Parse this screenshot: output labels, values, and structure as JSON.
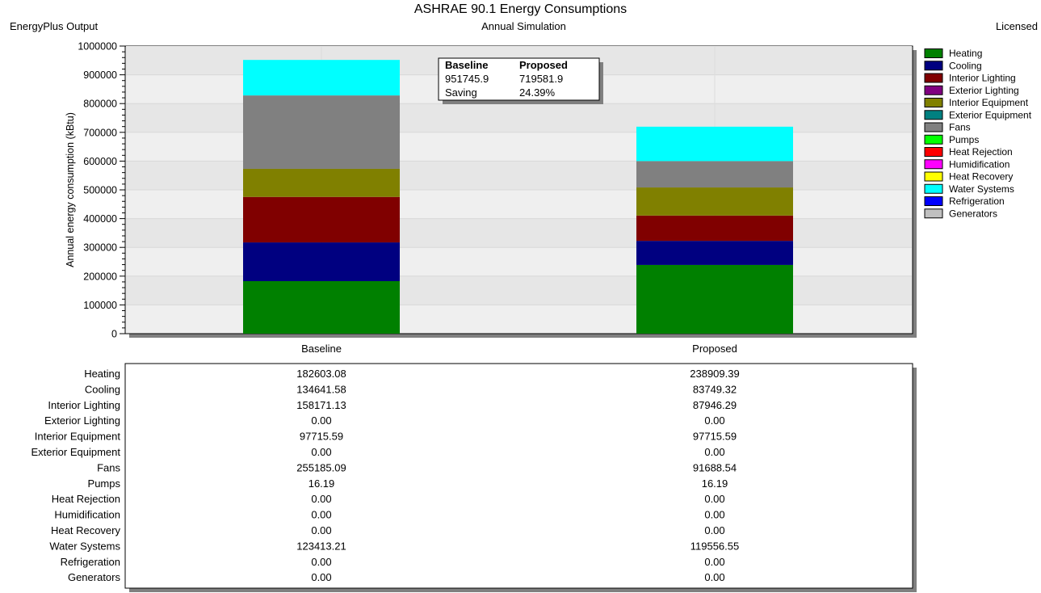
{
  "header": {
    "title": "ASHRAE 90.1 Energy Consumptions",
    "subtitle": "Annual Simulation",
    "source": "EnergyPlus Output",
    "license": "Licensed"
  },
  "colors": {
    "Heating": "#008000",
    "Cooling": "#000080",
    "Interior Lighting": "#800000",
    "Exterior Lighting": "#800080",
    "Interior Equipment": "#808000",
    "Exterior Equipment": "#008080",
    "Fans": "#808080",
    "Pumps": "#00ff00",
    "Heat Rejection": "#ff0000",
    "Humidification": "#ff00ff",
    "Heat Recovery": "#ffff00",
    "Water Systems": "#00ffff",
    "Refrigeration": "#0000ff",
    "Generators": "#c0c0c0"
  },
  "chart_data": {
    "type": "bar",
    "stacked": true,
    "title": "ASHRAE 90.1 Energy Consumptions",
    "subtitle": "Annual Simulation",
    "ylabel": "Annual energy consumption (kBtu)",
    "xlabel": "",
    "ylim": [
      0,
      1000000
    ],
    "yticks": [
      "0",
      "100000",
      "200000",
      "300000",
      "400000",
      "500000",
      "600000",
      "700000",
      "800000",
      "900000",
      "1000000"
    ],
    "yticks_values": [
      0,
      100000,
      200000,
      300000,
      400000,
      500000,
      600000,
      700000,
      800000,
      900000,
      1000000
    ],
    "grid": true,
    "legend_position": "right",
    "categories": [
      "Baseline",
      "Proposed"
    ],
    "series": [
      {
        "name": "Heating",
        "values": [
          182603.08,
          238909.39
        ]
      },
      {
        "name": "Cooling",
        "values": [
          134641.58,
          83749.32
        ]
      },
      {
        "name": "Interior Lighting",
        "values": [
          158171.13,
          87946.29
        ]
      },
      {
        "name": "Exterior Lighting",
        "values": [
          0,
          0
        ]
      },
      {
        "name": "Interior Equipment",
        "values": [
          97715.59,
          97715.59
        ]
      },
      {
        "name": "Exterior Equipment",
        "values": [
          0,
          0
        ]
      },
      {
        "name": "Fans",
        "values": [
          255185.09,
          91688.54
        ]
      },
      {
        "name": "Pumps",
        "values": [
          16.19,
          16.19
        ]
      },
      {
        "name": "Heat Rejection",
        "values": [
          0,
          0
        ]
      },
      {
        "name": "Humidification",
        "values": [
          0,
          0
        ]
      },
      {
        "name": "Heat Recovery",
        "values": [
          0,
          0
        ]
      },
      {
        "name": "Water Systems",
        "values": [
          123413.21,
          119556.55
        ]
      },
      {
        "name": "Refrigeration",
        "values": [
          0,
          0
        ]
      },
      {
        "name": "Generators",
        "values": [
          0,
          0
        ]
      }
    ],
    "table_values": [
      [
        "182603.08",
        "238909.39"
      ],
      [
        "134641.58",
        "83749.32"
      ],
      [
        "158171.13",
        "87946.29"
      ],
      [
        "0.00",
        "0.00"
      ],
      [
        "97715.59",
        "97715.59"
      ],
      [
        "0.00",
        "0.00"
      ],
      [
        "255185.09",
        "91688.54"
      ],
      [
        "16.19",
        "16.19"
      ],
      [
        "0.00",
        "0.00"
      ],
      [
        "0.00",
        "0.00"
      ],
      [
        "0.00",
        "0.00"
      ],
      [
        "123413.21",
        "119556.55"
      ],
      [
        "0.00",
        "0.00"
      ],
      [
        "0.00",
        "0.00"
      ]
    ],
    "summary_box": {
      "header_left": "Baseline",
      "header_right": "Proposed",
      "value_left": "951745.9",
      "value_right": "719581.9",
      "saving_label": "Saving",
      "saving_value": "24.39%"
    }
  }
}
